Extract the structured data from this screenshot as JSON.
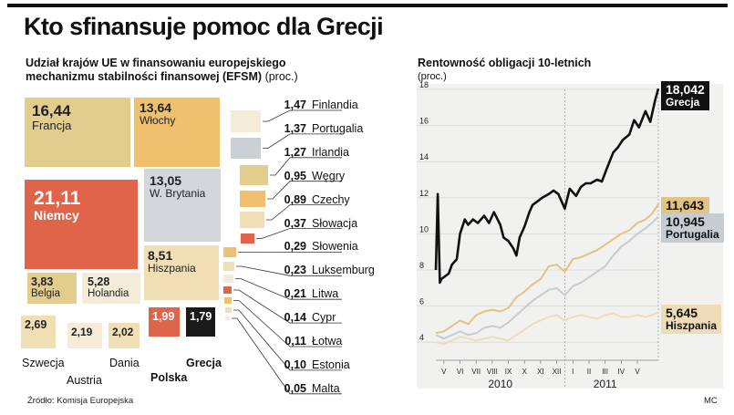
{
  "header": {
    "title": "Kto sfinansuje pomoc dla Grecji",
    "left_subtitle": "Udział krajów UE w finansowaniu europejskiego mechanizmu stabilności finansowej (EFSM)",
    "left_unit": "(proc.)",
    "source": "Źródło: Komisja Europejska",
    "credit": "MC"
  },
  "chart_data": [
    {
      "type": "treemap",
      "title": "Udział krajów UE w finansowaniu europejskiego mechanizmu stabilności finansowej (EFSM)",
      "unit": "proc.",
      "items": [
        {
          "country": "Francja",
          "value": 16.44,
          "display": "16,44",
          "color": "#e2cd8e"
        },
        {
          "country": "Włochy",
          "value": 13.64,
          "display": "13,64",
          "color": "#efc06d"
        },
        {
          "country": "Niemcy",
          "value": 21.11,
          "display": "21,11",
          "color": "#e0644a"
        },
        {
          "country": "W. Brytania",
          "value": 13.05,
          "display": "13,05",
          "color": "#d2d7db"
        },
        {
          "country": "Hiszpania",
          "value": 8.51,
          "display": "8,51",
          "color": "#f0deb4"
        },
        {
          "country": "Belgia",
          "value": 3.83,
          "display": "3,83",
          "color": "#e2cd8e"
        },
        {
          "country": "Holandia",
          "value": 5.28,
          "display": "5,28",
          "color": "#f4ecd8"
        },
        {
          "country": "Szwecja",
          "value": 2.69,
          "display": "2,69",
          "color": "#f0deb4"
        },
        {
          "country": "Austria",
          "value": 2.19,
          "display": "2,19",
          "color": "#f4ecd8"
        },
        {
          "country": "Dania",
          "value": 2.02,
          "display": "2,02",
          "color": "#f0deb4"
        },
        {
          "country": "Polska",
          "value": 1.99,
          "display": "1,99",
          "color": "#e0644a"
        },
        {
          "country": "Grecja",
          "value": 1.79,
          "display": "1,79",
          "color": "#1a1a1a"
        },
        {
          "country": "Finlandia",
          "value": 1.47,
          "display": "1,47",
          "color": "#f4ecd8"
        },
        {
          "country": "Portugalia",
          "value": 1.37,
          "display": "1,37",
          "color": "#c9d0d6"
        },
        {
          "country": "Irlandia",
          "value": 1.27,
          "display": "1,27",
          "color": "#e2cd8e"
        },
        {
          "country": "Węgry",
          "value": 0.95,
          "display": "0,95",
          "color": "#efc06d"
        },
        {
          "country": "Czechy",
          "value": 0.89,
          "display": "0,89",
          "color": "#f0deb4"
        },
        {
          "country": "Słowacja",
          "value": 0.37,
          "display": "0,37",
          "color": "#e0644a"
        },
        {
          "country": "Słowenia",
          "value": 0.29,
          "display": "0,29",
          "color": "#efc06d"
        },
        {
          "country": "Luksemburg",
          "value": 0.23,
          "display": "0,23",
          "color": "#f0deb4"
        },
        {
          "country": "Litwa",
          "value": 0.21,
          "display": "0,21",
          "color": "#f4ecd8"
        },
        {
          "country": "Cypr",
          "value": 0.14,
          "display": "0,14",
          "color": "#e0644a"
        },
        {
          "country": "Łotwa",
          "value": 0.11,
          "display": "0,11",
          "color": "#efc06d"
        },
        {
          "country": "Estonia",
          "value": 0.1,
          "display": "0,10",
          "color": "#f0deb4"
        },
        {
          "country": "Malta",
          "value": 0.05,
          "display": "0,05",
          "color": "#f4ecd8"
        }
      ]
    },
    {
      "type": "line",
      "title": "Rentowność obligacji 10-letnich",
      "ylabel": "(proc.)",
      "ylim": [
        3,
        18
      ],
      "yticks": [
        4,
        6,
        8,
        10,
        12,
        14,
        16,
        18
      ],
      "month_ticks": [
        "V",
        "VI",
        "VII",
        "VIII",
        "IX",
        "X",
        "XI",
        "XII",
        "I",
        "II",
        "III",
        "IV",
        "V"
      ],
      "years": [
        "2010",
        "2011"
      ],
      "xlim": [
        0,
        13.8
      ],
      "series": [
        {
          "name": "Grecja",
          "last_label": "18,042",
          "color": "#111111",
          "width": 2.6,
          "x": [
            0,
            0.12,
            0.25,
            0.35,
            0.5,
            0.8,
            1,
            1.3,
            1.5,
            1.8,
            2,
            2.3,
            2.6,
            3,
            3.3,
            3.6,
            4,
            4.2,
            4.5,
            4.8,
            5,
            5.2,
            5.5,
            5.8,
            6,
            6.3,
            6.6,
            7,
            7.3,
            7.6,
            8,
            8.3,
            8.7,
            9,
            9.3,
            9.6,
            10,
            10.3,
            10.6,
            11,
            11.3,
            11.6,
            12,
            12.3,
            12.6,
            13,
            13.3,
            13.6,
            13.8
          ],
          "y": [
            8.0,
            12.2,
            7.3,
            7.5,
            7.6,
            7.8,
            8.3,
            8.6,
            10.0,
            10.8,
            10.5,
            10.8,
            10.6,
            11.0,
            10.6,
            11.2,
            10.5,
            9.8,
            9.6,
            9.2,
            8.8,
            9.8,
            10.4,
            11.2,
            11.6,
            11.8,
            12.0,
            12.2,
            12.4,
            12.2,
            11.4,
            12.5,
            12.1,
            12.6,
            12.8,
            12.8,
            13.0,
            12.9,
            13.6,
            14.5,
            14.8,
            15.2,
            15.5,
            16.3,
            15.9,
            16.8,
            16.2,
            17.4,
            18.04
          ]
        },
        {
          "name": "Irlandia",
          "last_label": "11,643",
          "color": "#e2c482",
          "width": 2,
          "x": [
            0,
            0.5,
            1,
            1.5,
            2,
            2.5,
            3,
            3.5,
            4,
            4.5,
            5,
            5.5,
            6,
            6.5,
            7,
            7.5,
            8,
            8.5,
            9,
            9.5,
            10,
            10.5,
            11,
            11.5,
            12,
            12.5,
            13,
            13.4,
            13.8
          ],
          "y": [
            4.5,
            4.6,
            4.9,
            5.2,
            5.0,
            5.5,
            5.7,
            5.8,
            5.7,
            5.9,
            6.5,
            6.8,
            7.2,
            7.5,
            8.2,
            8.3,
            7.9,
            8.6,
            8.7,
            8.9,
            9.1,
            9.4,
            9.7,
            10.0,
            10.2,
            10.6,
            10.8,
            11.1,
            11.64
          ]
        },
        {
          "name": "Portugalia",
          "last_label": "10,945",
          "color": "#c6ccd2",
          "width": 2,
          "x": [
            0,
            0.5,
            1,
            1.5,
            2,
            2.5,
            3,
            3.5,
            4,
            4.5,
            5,
            5.5,
            6,
            6.5,
            7,
            7.5,
            8,
            8.5,
            9,
            9.5,
            10,
            10.5,
            11,
            11.5,
            12,
            12.5,
            13,
            13.4,
            13.8
          ],
          "y": [
            4.4,
            4.2,
            4.4,
            4.6,
            4.4,
            4.5,
            4.8,
            4.9,
            4.8,
            5.1,
            5.5,
            5.9,
            6.3,
            6.6,
            6.9,
            7.0,
            6.6,
            7.1,
            7.3,
            7.6,
            7.9,
            8.2,
            8.8,
            9.3,
            9.6,
            10.0,
            10.3,
            10.6,
            10.95
          ]
        },
        {
          "name": "Hiszpania",
          "last_label": "5,645",
          "color": "#eddcb7",
          "width": 2,
          "x": [
            0,
            0.5,
            1,
            1.5,
            2,
            2.5,
            3,
            3.5,
            4,
            4.5,
            5,
            5.5,
            6,
            6.5,
            7,
            7.5,
            8,
            8.5,
            9,
            9.5,
            10,
            10.5,
            11,
            11.5,
            12,
            12.5,
            13,
            13.4,
            13.8
          ],
          "y": [
            4.0,
            3.9,
            4.1,
            4.3,
            4.2,
            4.1,
            4.2,
            4.3,
            4.2,
            4.1,
            4.4,
            4.7,
            5.0,
            5.2,
            5.4,
            5.5,
            5.2,
            5.4,
            5.5,
            5.4,
            5.3,
            5.5,
            5.6,
            5.4,
            5.4,
            5.5,
            5.4,
            5.5,
            5.65
          ]
        }
      ]
    }
  ]
}
